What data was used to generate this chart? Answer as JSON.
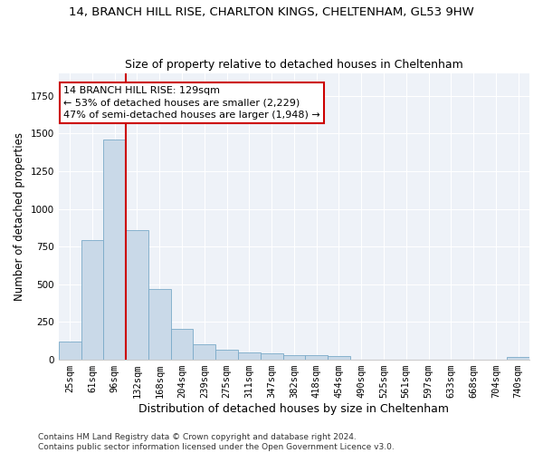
{
  "title": "14, BRANCH HILL RISE, CHARLTON KINGS, CHELTENHAM, GL53 9HW",
  "subtitle": "Size of property relative to detached houses in Cheltenham",
  "xlabel": "Distribution of detached houses by size in Cheltenham",
  "ylabel": "Number of detached properties",
  "categories": [
    "25sqm",
    "61sqm",
    "96sqm",
    "132sqm",
    "168sqm",
    "204sqm",
    "239sqm",
    "275sqm",
    "311sqm",
    "347sqm",
    "382sqm",
    "418sqm",
    "454sqm",
    "490sqm",
    "525sqm",
    "561sqm",
    "597sqm",
    "633sqm",
    "668sqm",
    "704sqm",
    "740sqm"
  ],
  "values": [
    120,
    795,
    1460,
    860,
    470,
    200,
    100,
    65,
    45,
    40,
    30,
    25,
    20,
    0,
    0,
    0,
    0,
    0,
    0,
    0,
    15
  ],
  "bar_color": "#c9d9e8",
  "bar_edge_color": "#7aaac8",
  "vline_index": 2.5,
  "vline_color": "#cc0000",
  "annotation_text": "14 BRANCH HILL RISE: 129sqm\n← 53% of detached houses are smaller (2,229)\n47% of semi-detached houses are larger (1,948) →",
  "annotation_box_color": "#ffffff",
  "annotation_box_edge_color": "#cc0000",
  "footnote": "Contains HM Land Registry data © Crown copyright and database right 2024.\nContains public sector information licensed under the Open Government Licence v3.0.",
  "ylim": [
    0,
    1900
  ],
  "background_color": "#eef2f8",
  "title_fontsize": 9.5,
  "subtitle_fontsize": 9,
  "ylabel_fontsize": 8.5,
  "xlabel_fontsize": 9,
  "tick_fontsize": 7.5,
  "annotation_fontsize": 8,
  "footnote_fontsize": 6.5
}
